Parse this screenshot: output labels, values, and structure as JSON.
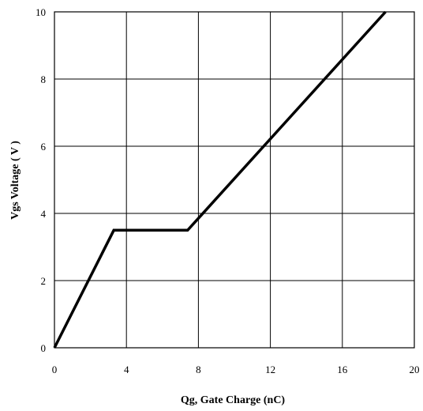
{
  "chart_data": {
    "type": "line",
    "title": "",
    "xlabel": "Qg, Gate Charge (nC)",
    "ylabel": "Vgs Voltage ( V )",
    "xlim": [
      0,
      20
    ],
    "ylim": [
      0,
      10
    ],
    "xticks": [
      0,
      4,
      8,
      12,
      16,
      20
    ],
    "yticks": [
      0,
      2,
      4,
      6,
      8,
      10
    ],
    "grid": true,
    "series": [
      {
        "color": "#000000",
        "x": [
          0,
          3.3,
          7.4,
          18.4
        ],
        "y": [
          0,
          3.5,
          3.5,
          10.0
        ]
      }
    ]
  }
}
